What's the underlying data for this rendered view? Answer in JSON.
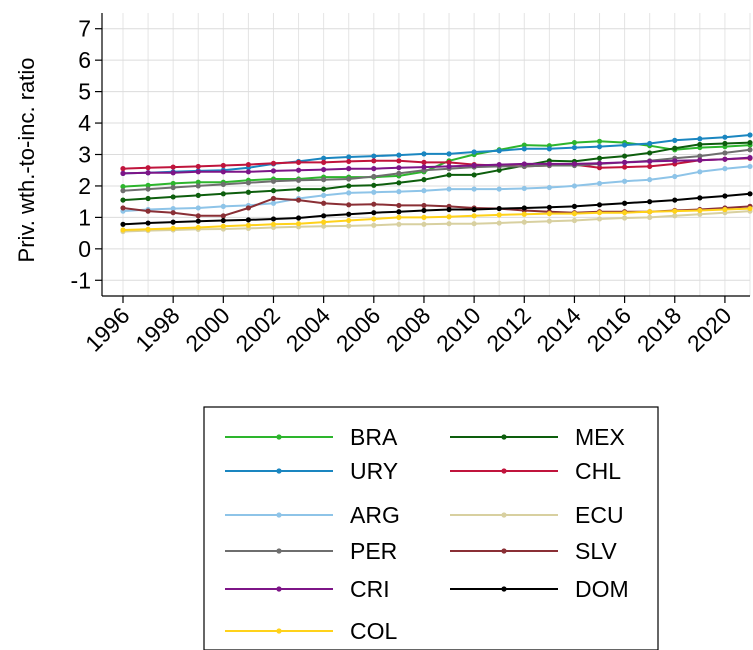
{
  "chart_data": {
    "type": "line",
    "title": "",
    "xlabel": "",
    "ylabel": "Priv. wth.-to-inc. ratio",
    "xlim": [
      1996,
      2021
    ],
    "ylim": [
      -1.5,
      7.5
    ],
    "x_ticks": [
      "1996",
      "1998",
      "2000",
      "2002",
      "2004",
      "2006",
      "2008",
      "2010",
      "2012",
      "2014",
      "2016",
      "2018",
      "2020"
    ],
    "y_ticks": [
      "-1",
      "0",
      "1",
      "2",
      "3",
      "4",
      "5",
      "6",
      "7"
    ],
    "grid": true,
    "legend_position": "bottom",
    "x": [
      1996,
      1997,
      1998,
      1999,
      2000,
      2001,
      2002,
      2003,
      2004,
      2005,
      2006,
      2007,
      2008,
      2009,
      2010,
      2011,
      2012,
      2013,
      2014,
      2015,
      2016,
      2017,
      2018,
      2019,
      2020,
      2021
    ],
    "series": [
      {
        "name": "BRA",
        "color": "#2db52d",
        "values": [
          1.98,
          2.02,
          2.08,
          2.12,
          2.12,
          2.18,
          2.22,
          2.22,
          2.28,
          2.28,
          2.28,
          2.32,
          2.45,
          2.8,
          3.0,
          3.15,
          3.3,
          3.28,
          3.38,
          3.42,
          3.38,
          3.28,
          3.15,
          3.22,
          3.25,
          3.3
        ]
      },
      {
        "name": "MEX",
        "color": "#0d5e0d",
        "values": [
          1.55,
          1.6,
          1.65,
          1.7,
          1.75,
          1.8,
          1.85,
          1.9,
          1.9,
          2.0,
          2.02,
          2.1,
          2.2,
          2.35,
          2.35,
          2.5,
          2.65,
          2.8,
          2.78,
          2.88,
          2.95,
          3.05,
          3.2,
          3.32,
          3.35,
          3.38
        ]
      },
      {
        "name": "URY",
        "color": "#1a86c0",
        "values": [
          2.4,
          2.42,
          2.45,
          2.48,
          2.5,
          2.58,
          2.7,
          2.78,
          2.88,
          2.92,
          2.95,
          2.98,
          3.02,
          3.02,
          3.08,
          3.12,
          3.18,
          3.18,
          3.22,
          3.25,
          3.3,
          3.35,
          3.45,
          3.5,
          3.55,
          3.62
        ]
      },
      {
        "name": "CHL",
        "color": "#c0143c",
        "values": [
          2.55,
          2.58,
          2.6,
          2.62,
          2.65,
          2.68,
          2.72,
          2.75,
          2.75,
          2.78,
          2.8,
          2.8,
          2.75,
          2.75,
          2.68,
          2.65,
          2.62,
          2.65,
          2.68,
          2.58,
          2.6,
          2.62,
          2.7,
          2.82,
          2.85,
          2.88
        ]
      },
      {
        "name": "ARG",
        "color": "#8ec4e8",
        "values": [
          1.2,
          1.25,
          1.28,
          1.3,
          1.35,
          1.38,
          1.45,
          1.6,
          1.7,
          1.78,
          1.8,
          1.82,
          1.85,
          1.9,
          1.9,
          1.9,
          1.92,
          1.95,
          2.0,
          2.08,
          2.15,
          2.2,
          2.3,
          2.45,
          2.55,
          2.62
        ]
      },
      {
        "name": "ECU",
        "color": "#d8d0a0",
        "values": [
          0.55,
          0.58,
          0.6,
          0.62,
          0.63,
          0.65,
          0.68,
          0.7,
          0.72,
          0.73,
          0.75,
          0.78,
          0.78,
          0.8,
          0.8,
          0.82,
          0.85,
          0.88,
          0.9,
          0.95,
          0.98,
          1.0,
          1.05,
          1.1,
          1.15,
          1.2
        ]
      },
      {
        "name": "PER",
        "color": "#6e6e6e",
        "values": [
          1.85,
          1.9,
          1.95,
          2.0,
          2.05,
          2.1,
          2.15,
          2.18,
          2.2,
          2.22,
          2.3,
          2.4,
          2.5,
          2.55,
          2.6,
          2.62,
          2.62,
          2.65,
          2.65,
          2.7,
          2.75,
          2.8,
          2.88,
          2.95,
          3.05,
          3.15
        ]
      },
      {
        "name": "SLV",
        "color": "#8a2f35",
        "values": [
          1.3,
          1.2,
          1.15,
          1.05,
          1.05,
          1.3,
          1.6,
          1.55,
          1.45,
          1.4,
          1.42,
          1.38,
          1.38,
          1.35,
          1.3,
          1.28,
          1.22,
          1.18,
          1.15,
          1.18,
          1.18,
          1.18,
          1.22,
          1.25,
          1.3,
          1.35
        ]
      },
      {
        "name": "CRI",
        "color": "#7d1587",
        "values": [
          2.4,
          2.42,
          2.42,
          2.45,
          2.45,
          2.45,
          2.48,
          2.5,
          2.52,
          2.55,
          2.55,
          2.58,
          2.6,
          2.62,
          2.65,
          2.68,
          2.7,
          2.7,
          2.7,
          2.72,
          2.75,
          2.78,
          2.8,
          2.82,
          2.85,
          2.9
        ]
      },
      {
        "name": "DOM",
        "color": "#000000",
        "values": [
          0.78,
          0.82,
          0.85,
          0.88,
          0.9,
          0.92,
          0.95,
          0.98,
          1.05,
          1.1,
          1.15,
          1.18,
          1.22,
          1.25,
          1.25,
          1.28,
          1.3,
          1.32,
          1.35,
          1.4,
          1.45,
          1.5,
          1.55,
          1.62,
          1.68,
          1.75
        ]
      },
      {
        "name": "COL",
        "color": "#ffd21a",
        "values": [
          0.6,
          0.62,
          0.65,
          0.68,
          0.72,
          0.75,
          0.78,
          0.8,
          0.85,
          0.9,
          0.95,
          1.0,
          1.0,
          1.02,
          1.05,
          1.08,
          1.1,
          1.12,
          1.12,
          1.15,
          1.15,
          1.18,
          1.2,
          1.22,
          1.25,
          1.28
        ]
      }
    ]
  }
}
